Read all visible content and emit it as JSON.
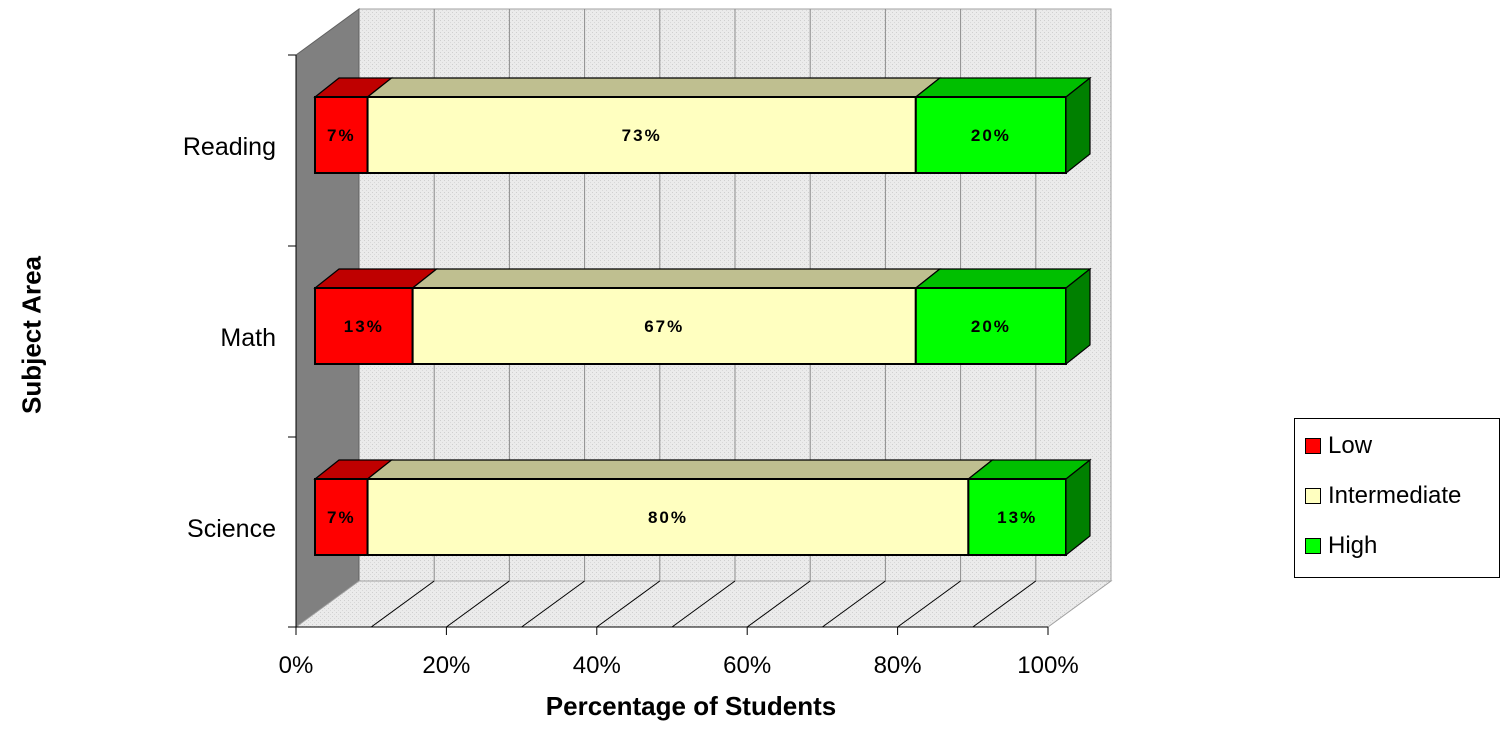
{
  "chart_data": {
    "type": "bar",
    "orientation": "horizontal",
    "stacked": "100%",
    "three_d": true,
    "categories": [
      "Reading",
      "Math",
      "Science"
    ],
    "series": [
      {
        "name": "Low",
        "values": [
          7,
          13,
          7
        ],
        "labels": [
          "7%",
          "13%",
          "7%"
        ],
        "color": "#ff0000"
      },
      {
        "name": "Intermediate",
        "values": [
          73,
          67,
          80
        ],
        "labels": [
          "73%",
          "67%",
          "80%"
        ],
        "color": "#ffffc0"
      },
      {
        "name": "High",
        "values": [
          20,
          20,
          13
        ],
        "labels": [
          "20%",
          "20%",
          "13%"
        ],
        "color": "#00ff00"
      }
    ],
    "xlabel": "Percentage of Students",
    "ylabel": "Subject Area",
    "xlim": [
      0,
      100
    ],
    "xticks": [
      "0%",
      "20%",
      "40%",
      "60%",
      "80%",
      "100%"
    ],
    "grid": true,
    "legend_position": "right"
  }
}
